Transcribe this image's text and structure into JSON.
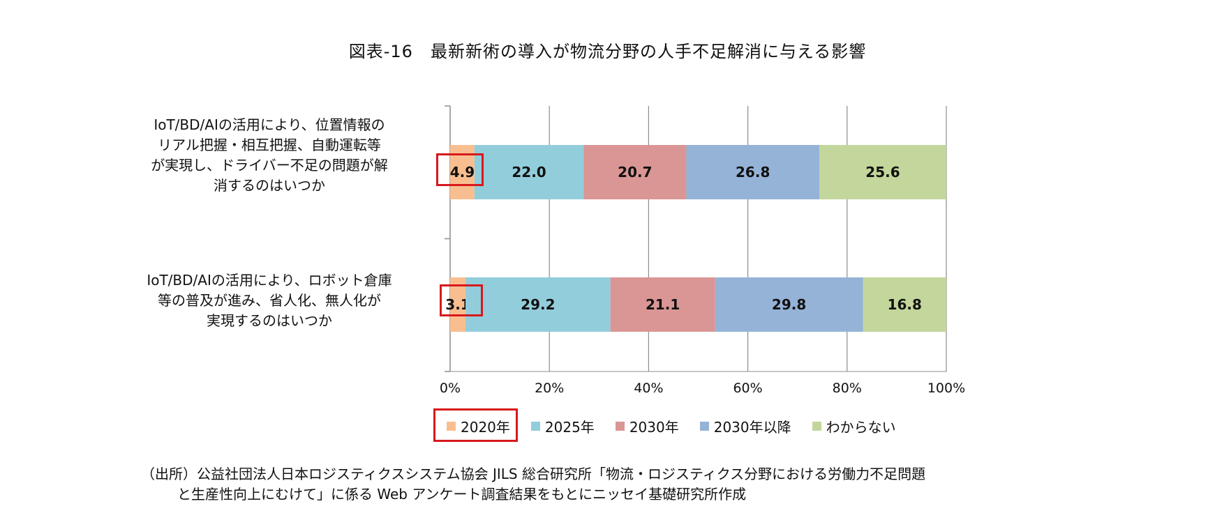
{
  "chart_data": {
    "type": "bar",
    "orientation": "horizontal",
    "stacked": "percent",
    "title": "図表-16　最新新術の導入が物流分野の人手不足解消に与える影響",
    "categories": [
      "IoT/BD/AIの活用により、位置情報のリアル把握・相互把握、自動運転等が実現し、ドライバー不足の問題が解消するのはいつか",
      "IoT/BD/AIの活用により、ロボット倉庫等の普及が進み、省人化、無人化が実現するのはいつか"
    ],
    "category_lines": [
      [
        "IoT/BD/AIの活用により、位置情報の",
        "リアル把握・相互把握、自動運転等",
        "が実現し、ドライバー不足の問題が解",
        "消するのはいつか"
      ],
      [
        "IoT/BD/AIの活用により、ロボット倉庫",
        "等の普及が進み、省人化、無人化が",
        "実現するのはいつか"
      ]
    ],
    "series": [
      {
        "name": "2020年",
        "color": "#f9be8f",
        "values": [
          4.9,
          3.1
        ]
      },
      {
        "name": "2025年",
        "color": "#92cddc",
        "values": [
          22.0,
          29.2
        ]
      },
      {
        "name": "2030年",
        "color": "#d99694",
        "values": [
          20.7,
          21.1
        ]
      },
      {
        "name": "2030年以降",
        "color": "#95b3d7",
        "values": [
          26.8,
          29.8
        ]
      },
      {
        "name": "わからない",
        "color": "#c3d69b",
        "values": [
          25.6,
          16.8
        ]
      }
    ],
    "data_labels": [
      [
        "4.9",
        "22.0",
        "20.7",
        "26.8",
        "25.6"
      ],
      [
        "3.1",
        "29.2",
        "21.1",
        "29.8",
        "16.8"
      ]
    ],
    "xlim": [
      0,
      100
    ],
    "x_ticks": [
      "0%",
      "20%",
      "40%",
      "60%",
      "80%",
      "100%"
    ],
    "grid": true,
    "legend_position": "bottom",
    "highlight_color": "#d7191c"
  },
  "source_note": {
    "line1": "（出所）公益社団法人日本ロジスティクスシステム協会 JILS 総合研究所「物流・ロジスティクス分野における労働力不足問題",
    "line2": "と生産性向上にむけて」に係る Web アンケート調査結果をもとにニッセイ基礎研究所作成"
  }
}
